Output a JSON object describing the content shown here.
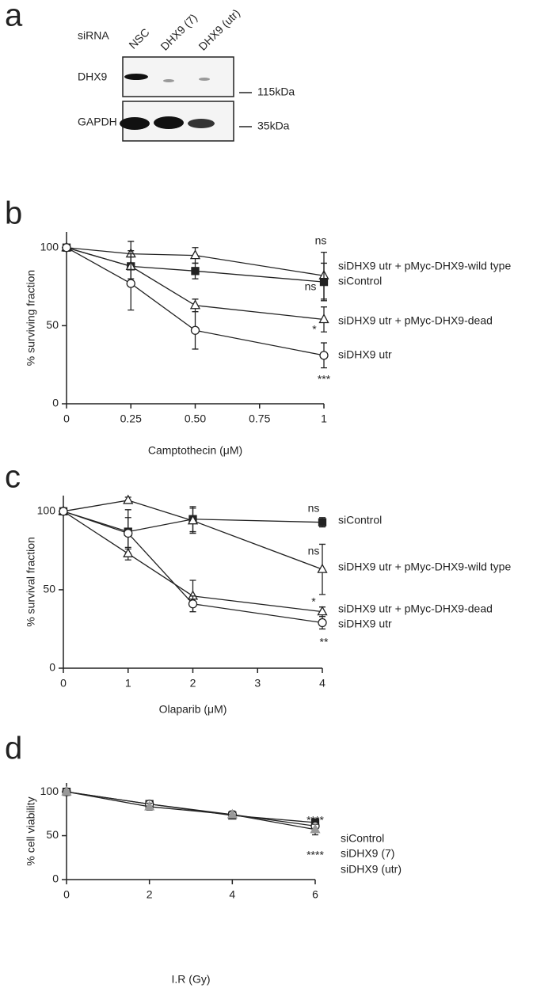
{
  "blot": {
    "panel": "a",
    "row_header": "siRNA",
    "lanes": [
      "NSC",
      "DHX9 (7)",
      "DHX9 (utr)"
    ],
    "proteins": [
      "DHX9",
      "GAPDH"
    ],
    "markers": [
      "115kDa",
      "35kDa"
    ]
  },
  "chart_data": [
    {
      "type": "line",
      "panel": "b",
      "xlabel": "Camptothecin (μM)",
      "ylabel": "% surviving fraction",
      "x": [
        0,
        0.25,
        0.5,
        1
      ],
      "xlim": [
        0,
        1
      ],
      "xticks": [
        0,
        0.25,
        {
          "value": 0.5,
          "label": "0.50"
        },
        0.75,
        1
      ],
      "ylim": [
        0,
        110
      ],
      "yticks": [
        0,
        50,
        100
      ],
      "series": [
        {
          "name": "siDHX9 utr + pMyc-DHX9-wild type",
          "color": "#222",
          "marker": "triangle-open",
          "values": [
            100,
            96,
            95,
            82
          ],
          "errors": [
            0,
            8,
            5,
            15
          ]
        },
        {
          "name": "siControl",
          "color": "#222",
          "marker": "square",
          "values": [
            100,
            88,
            85,
            78
          ],
          "errors": [
            0,
            10,
            5,
            12
          ]
        },
        {
          "name": "siDHX9 utr  + pMyc-DHX9-dead",
          "color": "#222",
          "marker": "triangle-open",
          "values": [
            100,
            88,
            63,
            54
          ],
          "errors": [
            0,
            8,
            4,
            8
          ]
        },
        {
          "name": "siDHX9 utr",
          "color": "#222",
          "marker": "circle-open",
          "values": [
            100,
            77,
            47,
            31
          ],
          "errors": [
            0,
            17,
            12,
            8
          ]
        }
      ],
      "annotations": [
        "ns",
        "ns",
        "*",
        "***"
      ]
    },
    {
      "type": "line",
      "panel": "c",
      "xlabel": "Olaparib (μM)",
      "ylabel": "% survival fraction",
      "x": [
        0,
        1,
        2,
        4
      ],
      "xlim": [
        0,
        4
      ],
      "xticks": [
        0,
        1,
        2,
        3,
        4
      ],
      "ylim": [
        0,
        110
      ],
      "yticks": [
        0,
        50,
        100
      ],
      "series": [
        {
          "name": "siControl",
          "color": "#222",
          "marker": "square",
          "values": [
            100,
            87,
            95,
            93
          ],
          "errors": [
            0,
            14,
            8,
            3
          ]
        },
        {
          "name": "siDHX9 utr + pMyc-DHX9-wild type",
          "color": "#222",
          "marker": "triangle-open",
          "values": [
            100,
            107,
            94,
            63
          ],
          "errors": [
            0,
            2,
            8,
            16
          ]
        },
        {
          "name": "siDHX9 utr + pMyc-DHX9-dead",
          "color": "#222",
          "marker": "triangle-open",
          "values": [
            100,
            73,
            46,
            36
          ],
          "errors": [
            0,
            4,
            10,
            3
          ]
        },
        {
          "name": "siDHX9 utr",
          "color": "#222",
          "marker": "circle-open",
          "values": [
            100,
            86,
            41,
            29
          ],
          "errors": [
            0,
            10,
            5,
            4
          ]
        }
      ],
      "annotations": [
        "ns",
        "ns",
        "*",
        "**"
      ]
    },
    {
      "type": "line",
      "panel": "d",
      "xlabel": "I.R (Gy)",
      "ylabel": "% cell viability",
      "x": [
        0,
        2,
        4,
        6
      ],
      "xlim": [
        0,
        6
      ],
      "xticks": [
        0,
        2,
        4,
        6
      ],
      "ylim": [
        0,
        110
      ],
      "yticks": [
        0,
        50,
        100
      ],
      "series": [
        {
          "name": "siControl",
          "color": "#222",
          "marker": "square",
          "values": [
            100,
            86,
            73,
            65
          ],
          "errors": [
            1,
            3,
            3,
            3
          ]
        },
        {
          "name": "siDHX9 (7)",
          "color": "#222",
          "marker": "circle-open",
          "values": [
            100,
            86,
            74,
            61
          ],
          "errors": [
            1,
            3,
            3,
            3
          ]
        },
        {
          "name": "siDHX9 (utr)",
          "color": "#999",
          "marker": "triangle",
          "values": [
            100,
            83,
            74,
            57
          ],
          "errors": [
            1,
            4,
            4,
            6
          ]
        }
      ],
      "annotations": [
        "****",
        "****"
      ]
    }
  ]
}
